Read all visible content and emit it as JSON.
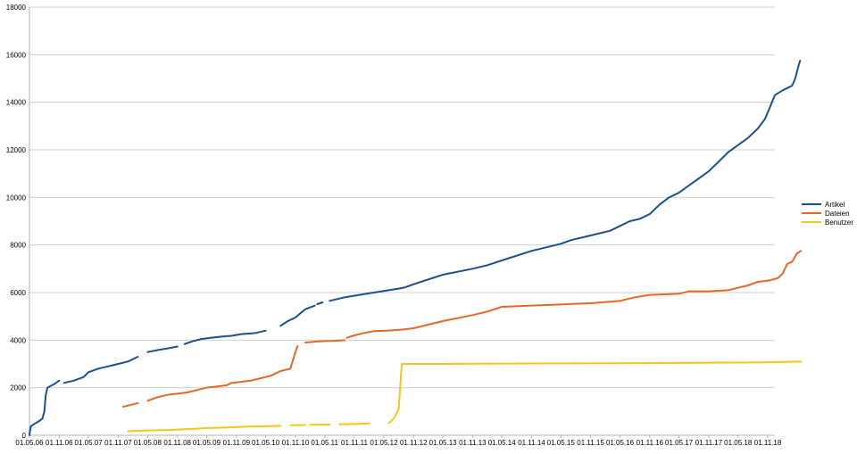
{
  "chart_data": {
    "type": "line",
    "title": "",
    "xlabel": "",
    "ylabel": "",
    "ylim": [
      0,
      18000
    ],
    "yticks": [
      0,
      2000,
      4000,
      6000,
      8000,
      10000,
      12000,
      14000,
      16000,
      18000
    ],
    "xlim": [
      "2006-05-01",
      "2018-12-15"
    ],
    "xticks": [
      "01.05.06",
      "01.11.06",
      "01.05.07",
      "01.11.07",
      "01.05.08",
      "01.11.08",
      "01.05.09",
      "01.11.09",
      "01.05.10",
      "01.11.10",
      "01.05.11",
      "01.11.11",
      "01.05.12",
      "01.11.12",
      "01.05.13",
      "01.11.13",
      "01.05.14",
      "01.11.14",
      "01.05.15",
      "01.11.15",
      "01.05.16",
      "01.11.16",
      "01.05.17",
      "01.11.17",
      "01.05.18",
      "01.11.18"
    ],
    "grid": "horizontal",
    "legend_position": "right",
    "series": [
      {
        "name": "Artikel",
        "color": "#1f4e8c",
        "segments": [
          [
            [
              "2006-05-01",
              0
            ],
            [
              "2006-05-05",
              200
            ],
            [
              "2006-05-10",
              380
            ],
            [
              "2006-06-01",
              480
            ],
            [
              "2006-07-01",
              600
            ],
            [
              "2006-07-20",
              700
            ],
            [
              "2006-08-01",
              1000
            ],
            [
              "2006-08-10",
              1700
            ],
            [
              "2006-08-20",
              2000
            ],
            [
              "2006-10-01",
              2150
            ],
            [
              "2006-11-01",
              2300
            ]
          ],
          [
            [
              "2006-12-01",
              2200
            ],
            [
              "2007-02-01",
              2300
            ],
            [
              "2007-04-01",
              2450
            ],
            [
              "2007-05-01",
              2650
            ],
            [
              "2007-07-01",
              2800
            ],
            [
              "2007-09-01",
              2900
            ],
            [
              "2007-11-01",
              3000
            ],
            [
              "2008-01-01",
              3100
            ],
            [
              "2008-03-01",
              3300
            ]
          ],
          [
            [
              "2008-05-01",
              3500
            ],
            [
              "2008-07-01",
              3580
            ],
            [
              "2008-09-01",
              3650
            ],
            [
              "2008-11-01",
              3730
            ]
          ],
          [
            [
              "2008-12-15",
              3830
            ],
            [
              "2009-02-01",
              3950
            ],
            [
              "2009-04-01",
              4050
            ],
            [
              "2009-06-01",
              4100
            ],
            [
              "2009-08-01",
              4150
            ],
            [
              "2009-10-01",
              4180
            ],
            [
              "2009-12-01",
              4250
            ],
            [
              "2010-03-01",
              4300
            ],
            [
              "2010-05-01",
              4400
            ]
          ],
          [
            [
              "2010-08-01",
              4600
            ],
            [
              "2010-09-15",
              4800
            ],
            [
              "2010-11-01",
              4950
            ],
            [
              "2011-01-01",
              5300
            ],
            [
              "2011-03-01",
              5450
            ]
          ],
          [
            [
              "2011-04-01",
              5550
            ]
          ],
          [
            [
              "2011-06-01",
              5650
            ],
            [
              "2011-09-01",
              5800
            ],
            [
              "2011-12-01",
              5900
            ],
            [
              "2012-03-01",
              6000
            ],
            [
              "2012-06-01",
              6100
            ],
            [
              "2012-09-01",
              6200
            ],
            [
              "2012-11-01",
              6350
            ],
            [
              "2013-05-01",
              6750
            ],
            [
              "2013-11-01",
              7000
            ],
            [
              "2014-02-01",
              7150
            ],
            [
              "2014-05-01",
              7350
            ],
            [
              "2014-11-01",
              7750
            ],
            [
              "2015-05-01",
              8050
            ],
            [
              "2015-07-01",
              8200
            ],
            [
              "2015-11-01",
              8400
            ],
            [
              "2016-03-01",
              8600
            ],
            [
              "2016-05-01",
              8800
            ],
            [
              "2016-07-01",
              9000
            ],
            [
              "2016-09-01",
              9100
            ],
            [
              "2016-11-01",
              9300
            ],
            [
              "2017-01-01",
              9700
            ],
            [
              "2017-03-01",
              10000
            ],
            [
              "2017-05-01",
              10200
            ],
            [
              "2017-07-01",
              10500
            ],
            [
              "2017-09-01",
              10800
            ],
            [
              "2017-11-01",
              11100
            ],
            [
              "2018-01-01",
              11500
            ],
            [
              "2018-03-01",
              11900
            ],
            [
              "2018-05-01",
              12200
            ],
            [
              "2018-07-01",
              12500
            ],
            [
              "2018-09-01",
              12900
            ],
            [
              "2018-10-15",
              13300
            ],
            [
              "2018-11-15",
              13800
            ],
            [
              "2018-12-15",
              14300
            ],
            [
              "2019-02-01",
              14500
            ],
            [
              "2019-04-01",
              14700
            ],
            [
              "2019-04-20",
              15000
            ],
            [
              "2019-05-05",
              15400
            ],
            [
              "2019-05-20",
              15750
            ]
          ]
        ]
      },
      {
        "name": "Dateien",
        "color": "#e8662a",
        "segments": [
          [
            [
              "2007-12-01",
              1200
            ],
            [
              "2008-02-01",
              1300
            ],
            [
              "2008-03-01",
              1350
            ]
          ],
          [
            [
              "2008-05-01",
              1450
            ],
            [
              "2008-07-01",
              1600
            ],
            [
              "2008-09-01",
              1700
            ],
            [
              "2008-11-01",
              1750
            ],
            [
              "2009-01-01",
              1800
            ],
            [
              "2009-03-01",
              1900
            ],
            [
              "2009-05-01",
              2000
            ],
            [
              "2009-07-01",
              2050
            ],
            [
              "2009-09-01",
              2100
            ],
            [
              "2009-10-01",
              2200
            ],
            [
              "2009-12-01",
              2250
            ],
            [
              "2010-02-01",
              2300
            ],
            [
              "2010-04-01",
              2400
            ],
            [
              "2010-06-01",
              2500
            ],
            [
              "2010-08-01",
              2700
            ],
            [
              "2010-10-01",
              2800
            ],
            [
              "2010-11-01",
              3500
            ],
            [
              "2010-11-15",
              3750
            ]
          ],
          [
            [
              "2011-01-01",
              3900
            ],
            [
              "2011-04-01",
              3950
            ],
            [
              "2011-07-01",
              3970
            ],
            [
              "2011-09-01",
              4000
            ]
          ],
          [
            [
              "2011-09-15",
              4100
            ],
            [
              "2011-11-01",
              4200
            ],
            [
              "2012-01-01",
              4300
            ],
            [
              "2012-03-01",
              4380
            ],
            [
              "2012-06-01",
              4400
            ],
            [
              "2012-09-01",
              4450
            ],
            [
              "2012-11-01",
              4500
            ],
            [
              "2013-05-01",
              4800
            ],
            [
              "2013-11-01",
              5050
            ],
            [
              "2014-02-01",
              5200
            ],
            [
              "2014-05-01",
              5400
            ],
            [
              "2014-11-01",
              5450
            ],
            [
              "2015-05-01",
              5500
            ],
            [
              "2015-11-01",
              5550
            ],
            [
              "2016-05-01",
              5650
            ],
            [
              "2016-08-01",
              5800
            ],
            [
              "2016-11-01",
              5900
            ],
            [
              "2017-05-01",
              5950
            ],
            [
              "2017-07-01",
              6050
            ],
            [
              "2017-11-01",
              6050
            ],
            [
              "2018-03-01",
              6100
            ],
            [
              "2018-05-01",
              6200
            ],
            [
              "2018-07-01",
              6300
            ],
            [
              "2018-09-01",
              6450
            ],
            [
              "2018-11-01",
              6500
            ],
            [
              "2019-01-01",
              6600
            ],
            [
              "2019-02-01",
              6800
            ],
            [
              "2019-03-01",
              7200
            ],
            [
              "2019-04-01",
              7300
            ],
            [
              "2019-05-01",
              7650
            ],
            [
              "2019-05-25",
              7750
            ]
          ]
        ]
      },
      {
        "name": "Benutzer",
        "color": "#f5c518",
        "segments": [
          [
            [
              "2008-01-01",
              170
            ],
            [
              "2008-05-01",
              200
            ],
            [
              "2008-09-01",
              220
            ],
            [
              "2009-01-01",
              260
            ],
            [
              "2009-05-01",
              300
            ],
            [
              "2009-09-01",
              330
            ],
            [
              "2010-01-01",
              360
            ],
            [
              "2010-05-01",
              380
            ],
            [
              "2010-08-01",
              400
            ]
          ],
          [
            [
              "2010-10-01",
              420
            ],
            [
              "2011-01-01",
              430
            ]
          ],
          [
            [
              "2011-02-01",
              440
            ],
            [
              "2011-06-01",
              450
            ]
          ],
          [
            [
              "2011-08-01",
              460
            ],
            [
              "2011-12-01",
              480
            ],
            [
              "2012-02-01",
              500
            ]
          ],
          [
            [
              "2012-06-01",
              520
            ],
            [
              "2012-07-01",
              700
            ],
            [
              "2012-08-01",
              1100
            ],
            [
              "2012-08-20",
              3000
            ],
            [
              "2013-05-01",
              3000
            ],
            [
              "2014-11-01",
              3020
            ],
            [
              "2016-05-01",
              3030
            ],
            [
              "2017-11-01",
              3050
            ],
            [
              "2018-09-01",
              3060
            ],
            [
              "2019-05-25",
              3100
            ]
          ]
        ]
      }
    ]
  }
}
